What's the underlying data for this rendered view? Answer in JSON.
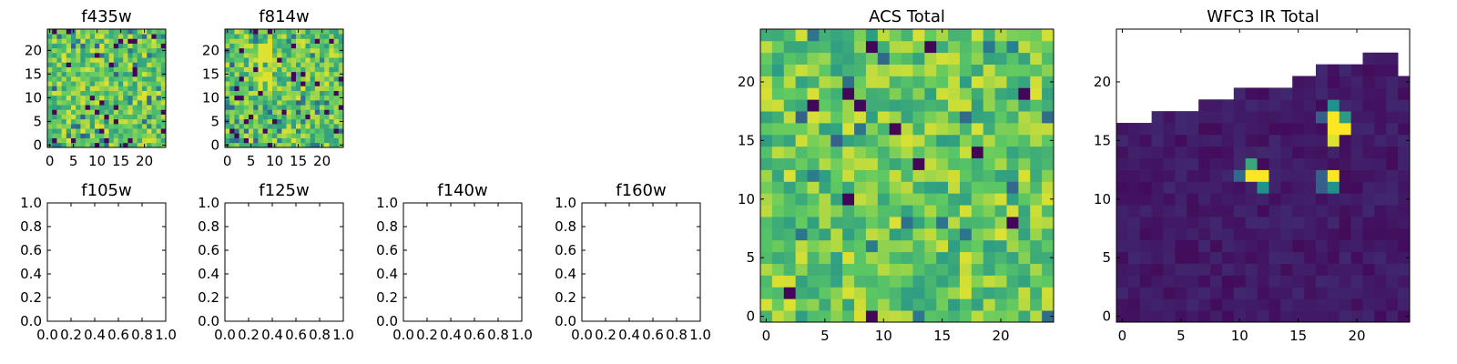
{
  "figure": {
    "description": "Multi-panel matplotlib figure of per-filter image cutouts",
    "colormap": "viridis",
    "colors": {
      "low": "#440154",
      "mid": "#21918c",
      "high": "#fde725",
      "axes": "#000000",
      "background": "#ffffff"
    }
  },
  "chart_data": [
    {
      "type": "heatmap",
      "title": "f435w",
      "xlim": [
        -0.5,
        24.5
      ],
      "ylim": [
        -0.5,
        24.5
      ],
      "xticks": [
        0,
        5,
        10,
        15,
        20
      ],
      "yticks": [
        0,
        5,
        10,
        15,
        20
      ],
      "xtick_labels": [
        "0",
        "5",
        "10",
        "15",
        "20"
      ],
      "ytick_labels": [
        "0",
        "5",
        "10",
        "15",
        "20"
      ],
      "grid": false,
      "origin": "lower",
      "size": [
        25,
        25
      ],
      "values_note": "25x25 noise-like pixel intensities, mostly mid-high with sparse low outliers"
    },
    {
      "type": "heatmap",
      "title": "f814w",
      "xlim": [
        -0.5,
        24.5
      ],
      "ylim": [
        -0.5,
        24.5
      ],
      "xticks": [
        0,
        5,
        10,
        15,
        20
      ],
      "yticks": [
        0,
        5,
        10,
        15,
        20
      ],
      "xtick_labels": [
        "0",
        "5",
        "10",
        "15",
        "20"
      ],
      "ytick_labels": [
        "0",
        "5",
        "10",
        "15",
        "20"
      ],
      "grid": false,
      "origin": "lower",
      "size": [
        25,
        25
      ],
      "values_note": "25x25 noise-like pixel intensities, bright vertical streak near x≈8"
    },
    {
      "type": "empty",
      "title": "f105w",
      "xlim": [
        0,
        1
      ],
      "ylim": [
        0,
        1
      ],
      "xticks": [
        0,
        0.2,
        0.4,
        0.6,
        0.8,
        1.0
      ],
      "yticks": [
        0,
        0.2,
        0.4,
        0.6,
        0.8,
        1.0
      ],
      "xtick_labels": [
        "0.0",
        "0.2",
        "0.4",
        "0.6",
        "0.8",
        "1.0"
      ],
      "ytick_labels": [
        "0.0",
        "0.2",
        "0.4",
        "0.6",
        "0.8",
        "1.0"
      ],
      "grid": false
    },
    {
      "type": "empty",
      "title": "f125w",
      "xlim": [
        0,
        1
      ],
      "ylim": [
        0,
        1
      ],
      "xticks": [
        0,
        0.2,
        0.4,
        0.6,
        0.8,
        1.0
      ],
      "yticks": [
        0,
        0.2,
        0.4,
        0.6,
        0.8,
        1.0
      ],
      "xtick_labels": [
        "0.0",
        "0.2",
        "0.4",
        "0.6",
        "0.8",
        "1.0"
      ],
      "ytick_labels": [
        "0.0",
        "0.2",
        "0.4",
        "0.6",
        "0.8",
        "1.0"
      ],
      "grid": false
    },
    {
      "type": "empty",
      "title": "f140w",
      "xlim": [
        0,
        1
      ],
      "ylim": [
        0,
        1
      ],
      "xticks": [
        0,
        0.2,
        0.4,
        0.6,
        0.8,
        1.0
      ],
      "yticks": [
        0,
        0.2,
        0.4,
        0.6,
        0.8,
        1.0
      ],
      "xtick_labels": [
        "0.0",
        "0.2",
        "0.4",
        "0.6",
        "0.8",
        "1.0"
      ],
      "ytick_labels": [
        "0.0",
        "0.2",
        "0.4",
        "0.6",
        "0.8",
        "1.0"
      ],
      "grid": false
    },
    {
      "type": "empty",
      "title": "f160w",
      "xlim": [
        0,
        1
      ],
      "ylim": [
        0,
        1
      ],
      "xticks": [
        0,
        0.2,
        0.4,
        0.6,
        0.8,
        1.0
      ],
      "yticks": [
        0,
        0.2,
        0.4,
        0.6,
        0.8,
        1.0
      ],
      "xtick_labels": [
        "0.0",
        "0.2",
        "0.4",
        "0.6",
        "0.8",
        "1.0"
      ],
      "ytick_labels": [
        "0.0",
        "0.2",
        "0.4",
        "0.6",
        "0.8",
        "1.0"
      ],
      "grid": false
    },
    {
      "type": "heatmap",
      "title": "ACS Total",
      "xlim": [
        -0.5,
        24.5
      ],
      "ylim": [
        -0.5,
        24.5
      ],
      "xticks": [
        0,
        5,
        10,
        15,
        20
      ],
      "yticks": [
        0,
        5,
        10,
        15,
        20
      ],
      "xtick_labels": [
        "0",
        "5",
        "10",
        "15",
        "20"
      ],
      "ytick_labels": [
        "0",
        "5",
        "10",
        "15",
        "20"
      ],
      "grid": false,
      "origin": "lower",
      "size": [
        25,
        25
      ],
      "values_note": "25x25 mostly green-yellow pixels with a few dark outliers"
    },
    {
      "type": "heatmap",
      "title": "WFC3 IR Total",
      "xlim": [
        -0.5,
        24.5
      ],
      "ylim": [
        -0.5,
        24.5
      ],
      "xticks": [
        0,
        5,
        10,
        15,
        20
      ],
      "yticks": [
        0,
        5,
        10,
        15,
        20
      ],
      "xtick_labels": [
        "0",
        "5",
        "10",
        "15",
        "20"
      ],
      "ytick_labels": [
        "0",
        "5",
        "10",
        "15",
        "20"
      ],
      "grid": false,
      "origin": "lower",
      "size": [
        25,
        25
      ],
      "masked_region": "upper-left staircase of blank (masked) pixels",
      "hot_spots": [
        {
          "x": 11,
          "y": 12,
          "level": "high"
        },
        {
          "x": 18,
          "y": 12,
          "level": "high"
        },
        {
          "x": 18,
          "y": 16.5,
          "level": "high"
        }
      ],
      "values_note": "mostly dark background with three bright sources"
    }
  ]
}
